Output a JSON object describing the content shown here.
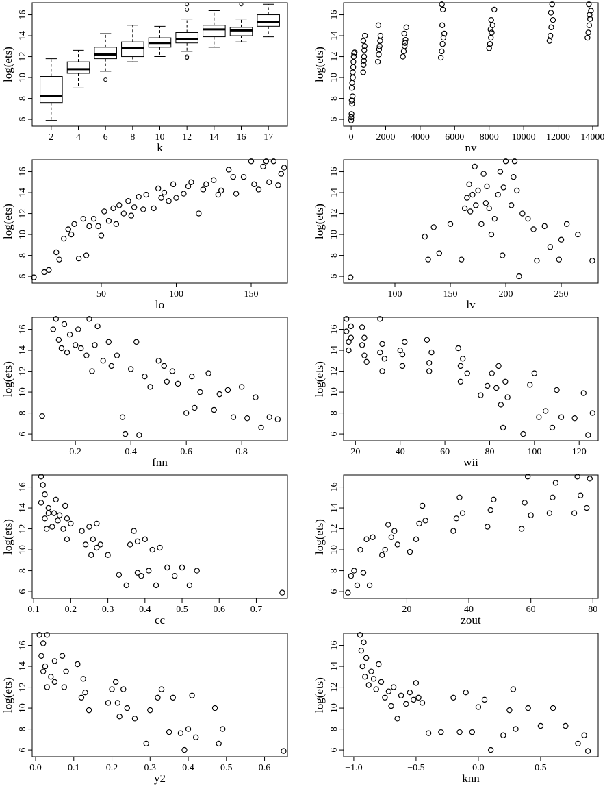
{
  "chart_data": [
    {
      "type": "box",
      "x_label": "k",
      "y_label": "log(ets)",
      "categories": [
        "2",
        "4",
        "6",
        "8",
        "10",
        "12",
        "14",
        "16",
        "17"
      ],
      "q1": [
        7.6,
        10.4,
        11.8,
        12.0,
        12.9,
        13.3,
        13.9,
        14.0,
        14.9
      ],
      "median": [
        8.2,
        10.8,
        12.2,
        12.8,
        13.3,
        13.7,
        14.6,
        14.5,
        15.3
      ],
      "q3": [
        10.1,
        11.5,
        12.9,
        13.4,
        13.8,
        14.3,
        15.0,
        14.8,
        16.0
      ],
      "whisker_low": [
        5.9,
        9.0,
        10.6,
        11.5,
        12.0,
        12.5,
        12.9,
        13.4,
        13.9
      ],
      "whisker_high": [
        11.8,
        12.6,
        14.2,
        15.0,
        14.9,
        15.6,
        16.4,
        15.6,
        17.0
      ],
      "outliers": [
        [],
        [],
        [
          9.8
        ],
        [],
        [],
        [
          12.0,
          11.9,
          16.5,
          17.0
        ],
        [],
        [
          17.0
        ],
        []
      ],
      "ylim": [
        5.35,
        17.15
      ],
      "yticks": [
        6,
        8,
        10,
        12,
        14,
        16
      ]
    },
    {
      "type": "scatter",
      "x_label": "nv",
      "y_label": "log(ets)",
      "x": [
        0,
        20,
        50,
        80,
        100,
        120,
        150,
        200,
        30,
        60,
        90,
        130,
        170,
        10,
        40,
        700,
        720,
        750,
        780,
        800,
        740,
        760,
        710,
        1550,
        1600,
        1650,
        1700,
        1580,
        1620,
        1680,
        3000,
        3050,
        3100,
        3150,
        3200,
        3080,
        3120,
        5200,
        5250,
        5300,
        5350,
        5400,
        5280,
        5320,
        5260,
        8000,
        8050,
        8100,
        8150,
        8200,
        8300,
        8080,
        8120,
        11500,
        11550,
        11600,
        11700,
        11650,
        11580,
        13700,
        13750,
        13800,
        13850,
        13900,
        13780,
        13820
      ],
      "values": [
        5.9,
        6.5,
        7.5,
        8.2,
        10,
        11,
        12,
        12.4,
        7.8,
        9.5,
        10.5,
        11.5,
        12.3,
        6.2,
        9,
        10.5,
        11.2,
        12,
        13,
        14,
        11.6,
        12.6,
        13.5,
        11.5,
        12.2,
        13,
        14,
        15,
        12.7,
        13.5,
        12,
        12.5,
        13,
        13.6,
        14.8,
        14.2,
        13.3,
        11.9,
        12.5,
        13.2,
        13.8,
        14.2,
        15,
        16.5,
        17,
        12.8,
        13.2,
        13.8,
        14.3,
        15,
        16.5,
        14.6,
        15.5,
        13.5,
        14,
        14.8,
        15.5,
        17,
        16.2,
        13.8,
        14.3,
        15,
        15.6,
        16.4,
        17,
        16
      ],
      "xlim": [
        -440,
        14320
      ],
      "xticks": [
        0,
        2000,
        4000,
        6000,
        8000,
        10000,
        12000,
        14000
      ],
      "ylim": [
        5.35,
        17.15
      ],
      "yticks": [
        6,
        8,
        10,
        12,
        14,
        16
      ]
    },
    {
      "type": "scatter",
      "x_label": "lo",
      "y_label": "log(ets)",
      "x": [
        5,
        12,
        15,
        20,
        22,
        25,
        28,
        30,
        32,
        35,
        38,
        40,
        42,
        45,
        48,
        50,
        52,
        55,
        58,
        60,
        62,
        65,
        68,
        70,
        72,
        75,
        78,
        80,
        85,
        88,
        90,
        92,
        95,
        98,
        100,
        105,
        108,
        110,
        115,
        118,
        120,
        125,
        128,
        130,
        135,
        138,
        140,
        145,
        150,
        152,
        155,
        158,
        160,
        162,
        165,
        168,
        170,
        172
      ],
      "values": [
        5.9,
        6.4,
        6.6,
        8.3,
        7.6,
        9.6,
        10.5,
        10,
        11,
        7.7,
        11.5,
        8,
        10.8,
        11.5,
        10.8,
        9.9,
        12.2,
        11.3,
        12.5,
        11,
        12.8,
        12,
        13.2,
        11.8,
        12.6,
        13.6,
        12.4,
        13.8,
        12.5,
        14.4,
        13.5,
        14,
        13.2,
        14.8,
        13.5,
        13.9,
        14.6,
        15,
        12,
        14.3,
        14.8,
        15.2,
        13.8,
        14.2,
        16.2,
        15.5,
        13.9,
        15.5,
        17,
        14.8,
        14.3,
        16.5,
        17,
        15,
        17,
        14.7,
        15.8,
        16.4
      ],
      "xlim": [
        3.9,
        174.2
      ],
      "xticks": [
        50,
        100,
        150
      ],
      "ylim": [
        5.35,
        17.15
      ],
      "yticks": [
        6,
        8,
        10,
        12,
        14,
        16
      ]
    },
    {
      "type": "scatter",
      "x_label": "lv",
      "y_label": "log(ets)",
      "x": [
        60,
        127,
        130,
        135,
        140,
        150,
        160,
        163,
        165,
        167,
        168,
        170,
        172,
        173,
        175,
        178,
        180,
        182,
        183,
        185,
        187,
        190,
        193,
        195,
        197,
        198,
        200,
        205,
        207,
        208,
        210,
        212,
        215,
        220,
        225,
        228,
        235,
        240,
        248,
        250,
        255,
        265,
        278
      ],
      "values": [
        5.9,
        9.8,
        7.6,
        10.7,
        8.2,
        11,
        7.6,
        12.5,
        13.5,
        14.8,
        12.2,
        13.8,
        16.5,
        12.8,
        14.2,
        11,
        15.8,
        13,
        14.6,
        12.5,
        10,
        11.5,
        13.8,
        16,
        8,
        14.5,
        17,
        12.8,
        15.5,
        17,
        14.2,
        6,
        12,
        11.5,
        10.5,
        7.5,
        10.8,
        8.8,
        7.6,
        9.5,
        11,
        10,
        7.5
      ],
      "xlim": [
        53.7,
        283.3
      ],
      "xticks": [
        100,
        150,
        200,
        250
      ],
      "ylim": [
        5.35,
        17.15
      ],
      "yticks": [
        6,
        8,
        10,
        12,
        14,
        16
      ]
    },
    {
      "type": "scatter",
      "x_label": "fnn",
      "y_label": "log(ets)",
      "x": [
        0.08,
        0.12,
        0.13,
        0.14,
        0.15,
        0.16,
        0.17,
        0.18,
        0.2,
        0.21,
        0.22,
        0.24,
        0.25,
        0.26,
        0.27,
        0.28,
        0.3,
        0.32,
        0.33,
        0.35,
        0.37,
        0.38,
        0.4,
        0.42,
        0.43,
        0.45,
        0.47,
        0.5,
        0.52,
        0.53,
        0.55,
        0.57,
        0.6,
        0.62,
        0.63,
        0.65,
        0.68,
        0.7,
        0.72,
        0.75,
        0.77,
        0.8,
        0.82,
        0.85,
        0.87,
        0.9,
        0.93
      ],
      "values": [
        7.7,
        16,
        17,
        15,
        14.2,
        16.5,
        13.8,
        15.5,
        14.5,
        16,
        14.2,
        13.5,
        17,
        12,
        14.5,
        16.3,
        13,
        14.8,
        12.5,
        13.5,
        7.6,
        6,
        12.2,
        14.8,
        5.9,
        11.5,
        10.5,
        13,
        12.5,
        11,
        12,
        10.8,
        8,
        11.5,
        8.5,
        10,
        11.8,
        8.3,
        9.8,
        10.2,
        7.6,
        10.5,
        7.5,
        9.5,
        6.6,
        7.6,
        7.4
      ],
      "xlim": [
        0.044,
        0.965
      ],
      "xticks": [
        0.2,
        0.4,
        0.6,
        0.8
      ],
      "ylim": [
        5.35,
        17.15
      ],
      "yticks": [
        6,
        8,
        10,
        12,
        14,
        16
      ]
    },
    {
      "type": "scatter",
      "x_label": "wii",
      "y_label": "log(ets)",
      "x": [
        16,
        16,
        17,
        17,
        18,
        18,
        23,
        23,
        24,
        24,
        25,
        31,
        31,
        32,
        32,
        33,
        40,
        41,
        41,
        42,
        52,
        53,
        53,
        54,
        66,
        67,
        67,
        68,
        70,
        76,
        79,
        81,
        83,
        84,
        85,
        86,
        87,
        88,
        95,
        98,
        100,
        102,
        105,
        108,
        110,
        112,
        118,
        122,
        124,
        126
      ],
      "values": [
        17,
        15.8,
        14.8,
        14,
        16.3,
        15.2,
        16.2,
        14.5,
        13.5,
        15.2,
        12.9,
        17,
        13.8,
        12,
        14.6,
        13.2,
        14,
        12.5,
        13.6,
        14.8,
        15,
        12.8,
        12,
        13.8,
        14.2,
        12.5,
        11,
        13.2,
        11.8,
        9.7,
        10.6,
        11.8,
        10.4,
        12.5,
        8.8,
        6.6,
        11,
        9.5,
        6,
        10.7,
        11.8,
        7.6,
        8.2,
        6.6,
        10.2,
        7.6,
        7.5,
        9.9,
        5.9,
        8
      ],
      "xlim": [
        14.7,
        128.5
      ],
      "xticks": [
        20,
        40,
        60,
        80,
        100,
        120
      ],
      "ylim": [
        5.35,
        17.15
      ],
      "yticks": [
        6,
        8,
        10,
        12,
        14,
        16
      ]
    },
    {
      "type": "scatter",
      "x_label": "cc",
      "y_label": "log(ets)",
      "x": [
        0.12,
        0.12,
        0.125,
        0.13,
        0.13,
        0.135,
        0.14,
        0.14,
        0.15,
        0.155,
        0.16,
        0.165,
        0.17,
        0.18,
        0.185,
        0.19,
        0.19,
        0.2,
        0.23,
        0.24,
        0.25,
        0.255,
        0.26,
        0.27,
        0.27,
        0.28,
        0.3,
        0.33,
        0.35,
        0.36,
        0.37,
        0.38,
        0.38,
        0.39,
        0.4,
        0.41,
        0.42,
        0.43,
        0.44,
        0.46,
        0.48,
        0.5,
        0.52,
        0.54,
        0.77
      ],
      "values": [
        17,
        14.5,
        16.2,
        13,
        15.3,
        12,
        14,
        13.5,
        12.2,
        13.5,
        14.8,
        12.8,
        13.3,
        12,
        14.2,
        11,
        13,
        12.5,
        11.8,
        10.5,
        12.2,
        9.5,
        11,
        12.5,
        10.2,
        10.5,
        9.5,
        7.6,
        6.6,
        10.5,
        11.8,
        7.8,
        10.8,
        7.5,
        11,
        8,
        10,
        6.6,
        10.2,
        8.3,
        7.5,
        8.3,
        6.6,
        8,
        5.9
      ],
      "xlim": [
        0.096,
        0.784
      ],
      "xticks": [
        0.1,
        0.2,
        0.3,
        0.4,
        0.5,
        0.6,
        0.7
      ],
      "ylim": [
        5.35,
        17.15
      ],
      "yticks": [
        6,
        8,
        10,
        12,
        14,
        16
      ]
    },
    {
      "type": "scatter",
      "x_label": "zout",
      "y_label": "log(ets)",
      "x": [
        1,
        2,
        3,
        4,
        5,
        6,
        7,
        8,
        9,
        12,
        13,
        14,
        15,
        16,
        17,
        21,
        23,
        24,
        25,
        26,
        35,
        36,
        37,
        38,
        46,
        47,
        48,
        57,
        58,
        59,
        60,
        66,
        67,
        68,
        74,
        75,
        76,
        78,
        79
      ],
      "values": [
        5.9,
        7.5,
        8,
        6.6,
        10,
        7.8,
        11,
        6.6,
        11.2,
        9.5,
        10,
        12.4,
        11.2,
        11.8,
        10.5,
        9.8,
        11,
        12.5,
        14.2,
        12.8,
        11.8,
        13,
        15,
        13.5,
        12.2,
        13.8,
        14.8,
        12,
        14.5,
        17,
        13.3,
        13.5,
        15,
        16.4,
        13.5,
        17,
        15.2,
        14,
        16.8
      ],
      "xlim": [
        -0.4,
        81.7
      ],
      "xticks": [
        20,
        40,
        60,
        80
      ],
      "ylim": [
        5.35,
        17.15
      ],
      "yticks": [
        6,
        8,
        10,
        12,
        14,
        16
      ]
    },
    {
      "type": "scatter",
      "x_label": "y2",
      "y_label": "log(ets)",
      "x": [
        0.01,
        0.015,
        0.02,
        0.02,
        0.025,
        0.03,
        0.03,
        0.04,
        0.05,
        0.05,
        0.07,
        0.075,
        0.08,
        0.11,
        0.12,
        0.125,
        0.13,
        0.14,
        0.19,
        0.2,
        0.21,
        0.215,
        0.22,
        0.23,
        0.24,
        0.26,
        0.29,
        0.3,
        0.32,
        0.33,
        0.35,
        0.36,
        0.38,
        0.39,
        0.4,
        0.41,
        0.42,
        0.47,
        0.48,
        0.49,
        0.65
      ],
      "values": [
        17,
        15,
        13.5,
        16.2,
        14,
        12,
        17,
        13,
        14.5,
        12.5,
        15,
        12,
        13.5,
        14.2,
        11,
        12.8,
        11.5,
        9.8,
        10.5,
        11.8,
        12.5,
        10.5,
        9.2,
        11.8,
        10,
        9,
        6.6,
        9.8,
        11,
        11.8,
        7.7,
        11,
        7.6,
        6,
        8,
        11.2,
        7.2,
        10,
        6.6,
        8,
        5.9
      ],
      "xlim": [
        -0.009,
        0.66
      ],
      "xticks": [
        {
          "value": 0,
          "label": "0.0"
        },
        0.1,
        0.2,
        0.3,
        0.4,
        0.5,
        0.6
      ],
      "ylim": [
        5.35,
        17.15
      ],
      "yticks": [
        6,
        8,
        10,
        12,
        14,
        16
      ]
    },
    {
      "type": "scatter",
      "x_label": "knn",
      "y_label": "log(ets)",
      "x": [
        -0.95,
        -0.94,
        -0.93,
        -0.92,
        -0.91,
        -0.9,
        -0.88,
        -0.86,
        -0.84,
        -0.82,
        -0.8,
        -0.78,
        -0.75,
        -0.72,
        -0.7,
        -0.68,
        -0.65,
        -0.62,
        -0.58,
        -0.55,
        -0.52,
        -0.5,
        -0.48,
        -0.45,
        -0.4,
        -0.3,
        -0.2,
        -0.15,
        -0.1,
        -0.05,
        0,
        0.05,
        0.1,
        0.2,
        0.25,
        0.28,
        0.3,
        0.4,
        0.5,
        0.6,
        0.7,
        0.8,
        0.85,
        0.88
      ],
      "values": [
        17,
        15.5,
        14,
        16.3,
        13,
        14.8,
        12.2,
        13.5,
        12.8,
        11.8,
        14.2,
        12.5,
        11,
        11.6,
        10.2,
        12,
        9,
        11.2,
        10.4,
        11.5,
        10.8,
        12.4,
        11,
        10.5,
        7.6,
        7.7,
        11,
        7.7,
        11.5,
        7.7,
        10.1,
        10.8,
        6,
        7.4,
        9.8,
        11.8,
        8,
        10,
        8.3,
        10,
        8.3,
        6.6,
        7.4,
        5.9
      ],
      "xlim": [
        -1.082,
        0.962
      ],
      "xticks": [
        {
          "value": -1,
          "label": "−1.0"
        },
        {
          "value": -0.5,
          "label": "−0.5"
        },
        {
          "value": 0,
          "label": "0.0"
        },
        0.5
      ],
      "ylim": [
        5.35,
        17.15
      ],
      "yticks": [
        6,
        8,
        10,
        12,
        14,
        16
      ]
    }
  ]
}
